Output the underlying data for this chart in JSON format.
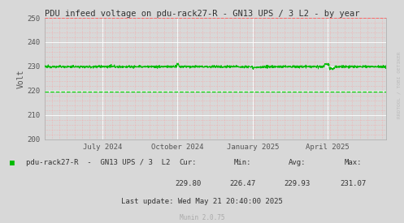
{
  "title": "PDU infeed voltage on pdu-rack27-R - GN13 UPS / 3 L2 - by year",
  "ylabel": "Volt",
  "ylim": [
    200,
    250
  ],
  "yticks": [
    200,
    210,
    220,
    230,
    240,
    250
  ],
  "bg_color": "#d8d8d8",
  "plot_bg_color": "#d8d8d8",
  "grid_color_major": "#ffffff",
  "grid_color_minor": "#ff9999",
  "line_color": "#00bb00",
  "dashed_line_value": 219.5,
  "dashed_line_color": "#00cc00",
  "upper_dashed_value": 250,
  "upper_dashed_color": "#ff6666",
  "main_value": 229.9,
  "noise_amplitude": 0.25,
  "legend_label": "pdu-rack27-R  -  GN13 UPS / 3  L2",
  "cur": "229.80",
  "min": "226.47",
  "avg": "229.93",
  "max": "231.07",
  "last_update": "Last update: Wed May 21 20:40:00 2025",
  "munin_version": "Munin 2.0.75",
  "watermark": "RRDTOOL / TOBI OETIKER",
  "x_tick_labels": [
    "July 2024",
    "October 2024",
    "January 2025",
    "April 2025"
  ],
  "x_tick_positions": [
    0.17,
    0.39,
    0.61,
    0.83
  ],
  "title_fontsize": 7.5,
  "tick_fontsize": 6.5,
  "label_fontsize": 7,
  "legend_fontsize": 6.5,
  "stats_fontsize": 6.5,
  "watermark_fontsize": 4.5
}
